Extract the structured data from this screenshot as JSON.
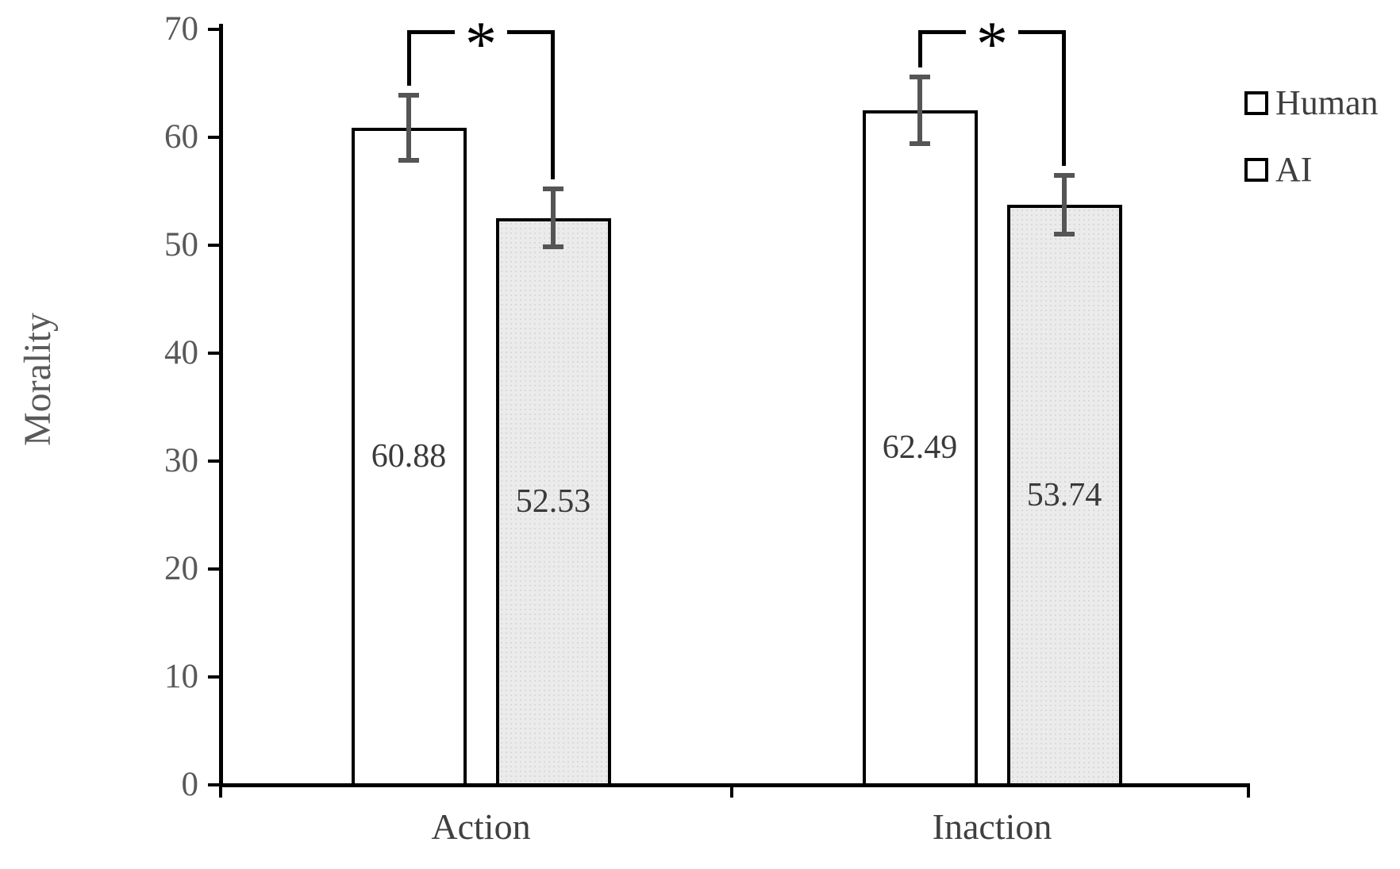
{
  "chart_data": {
    "type": "bar",
    "title": "",
    "xlabel": "",
    "ylabel": "Morality",
    "categories": [
      "Action",
      "Inaction"
    ],
    "series": [
      {
        "name": "Human",
        "values": [
          60.88,
          62.49
        ],
        "value_labels": [
          "60.88",
          "62.49"
        ],
        "errors": [
          3.0,
          3.1
        ],
        "fill": "#ffffff",
        "pattern": false
      },
      {
        "name": "AI",
        "values": [
          52.53,
          53.74
        ],
        "value_labels": [
          "52.53",
          "53.74"
        ],
        "errors": [
          2.7,
          2.7
        ],
        "fill": "#ebebeb",
        "pattern": true
      }
    ],
    "ylim": [
      0,
      70
    ],
    "yticks": [
      "0",
      "10",
      "20",
      "30",
      "40",
      "50",
      "60",
      "70"
    ],
    "grid": false,
    "error_bars": true,
    "legend": {
      "position": "upper-right",
      "items": [
        "Human",
        "AI"
      ]
    },
    "significance": [
      {
        "category": "Action",
        "between": [
          "Human",
          "AI"
        ],
        "label": "*"
      },
      {
        "category": "Inaction",
        "between": [
          "Human",
          "AI"
        ],
        "label": "*"
      }
    ],
    "colors": {
      "background": "#ffffff",
      "bar_border": "#000000",
      "human_fill": "#ffffff",
      "ai_fill": "#ebebeb",
      "axis": "#000000",
      "tick_label": "#595959",
      "axis_title": "#595959",
      "error_bar": "#555555",
      "value_label": "#3a3a3a",
      "category_label": "#3f3f3f",
      "legend_text": "#3f3f3f",
      "bracket": "#000000"
    }
  }
}
